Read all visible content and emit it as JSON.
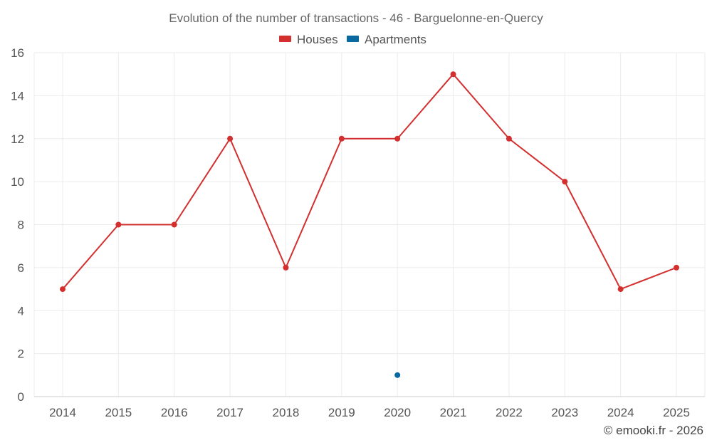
{
  "chart_data": {
    "type": "line",
    "title": "Evolution of the number of transactions - 46 - Barguelonne-en-Quercy",
    "xlabel": "",
    "ylabel": "",
    "categories": [
      "2014",
      "2015",
      "2016",
      "2017",
      "2018",
      "2019",
      "2020",
      "2021",
      "2022",
      "2023",
      "2024",
      "2025"
    ],
    "ylim": [
      0,
      16
    ],
    "yticks": [
      0,
      2,
      4,
      6,
      8,
      10,
      12,
      14,
      16
    ],
    "grid": true,
    "legend_position": "top-center",
    "series": [
      {
        "name": "Houses",
        "color": "#d32f2f",
        "values": [
          5,
          8,
          8,
          12,
          6,
          12,
          12,
          15,
          12,
          10,
          5,
          6
        ]
      },
      {
        "name": "Apartments",
        "color": "#0868a0",
        "values": [
          null,
          null,
          null,
          null,
          null,
          null,
          1,
          null,
          null,
          null,
          null,
          null
        ]
      }
    ]
  },
  "credit": "© emooki.fr - 2026"
}
